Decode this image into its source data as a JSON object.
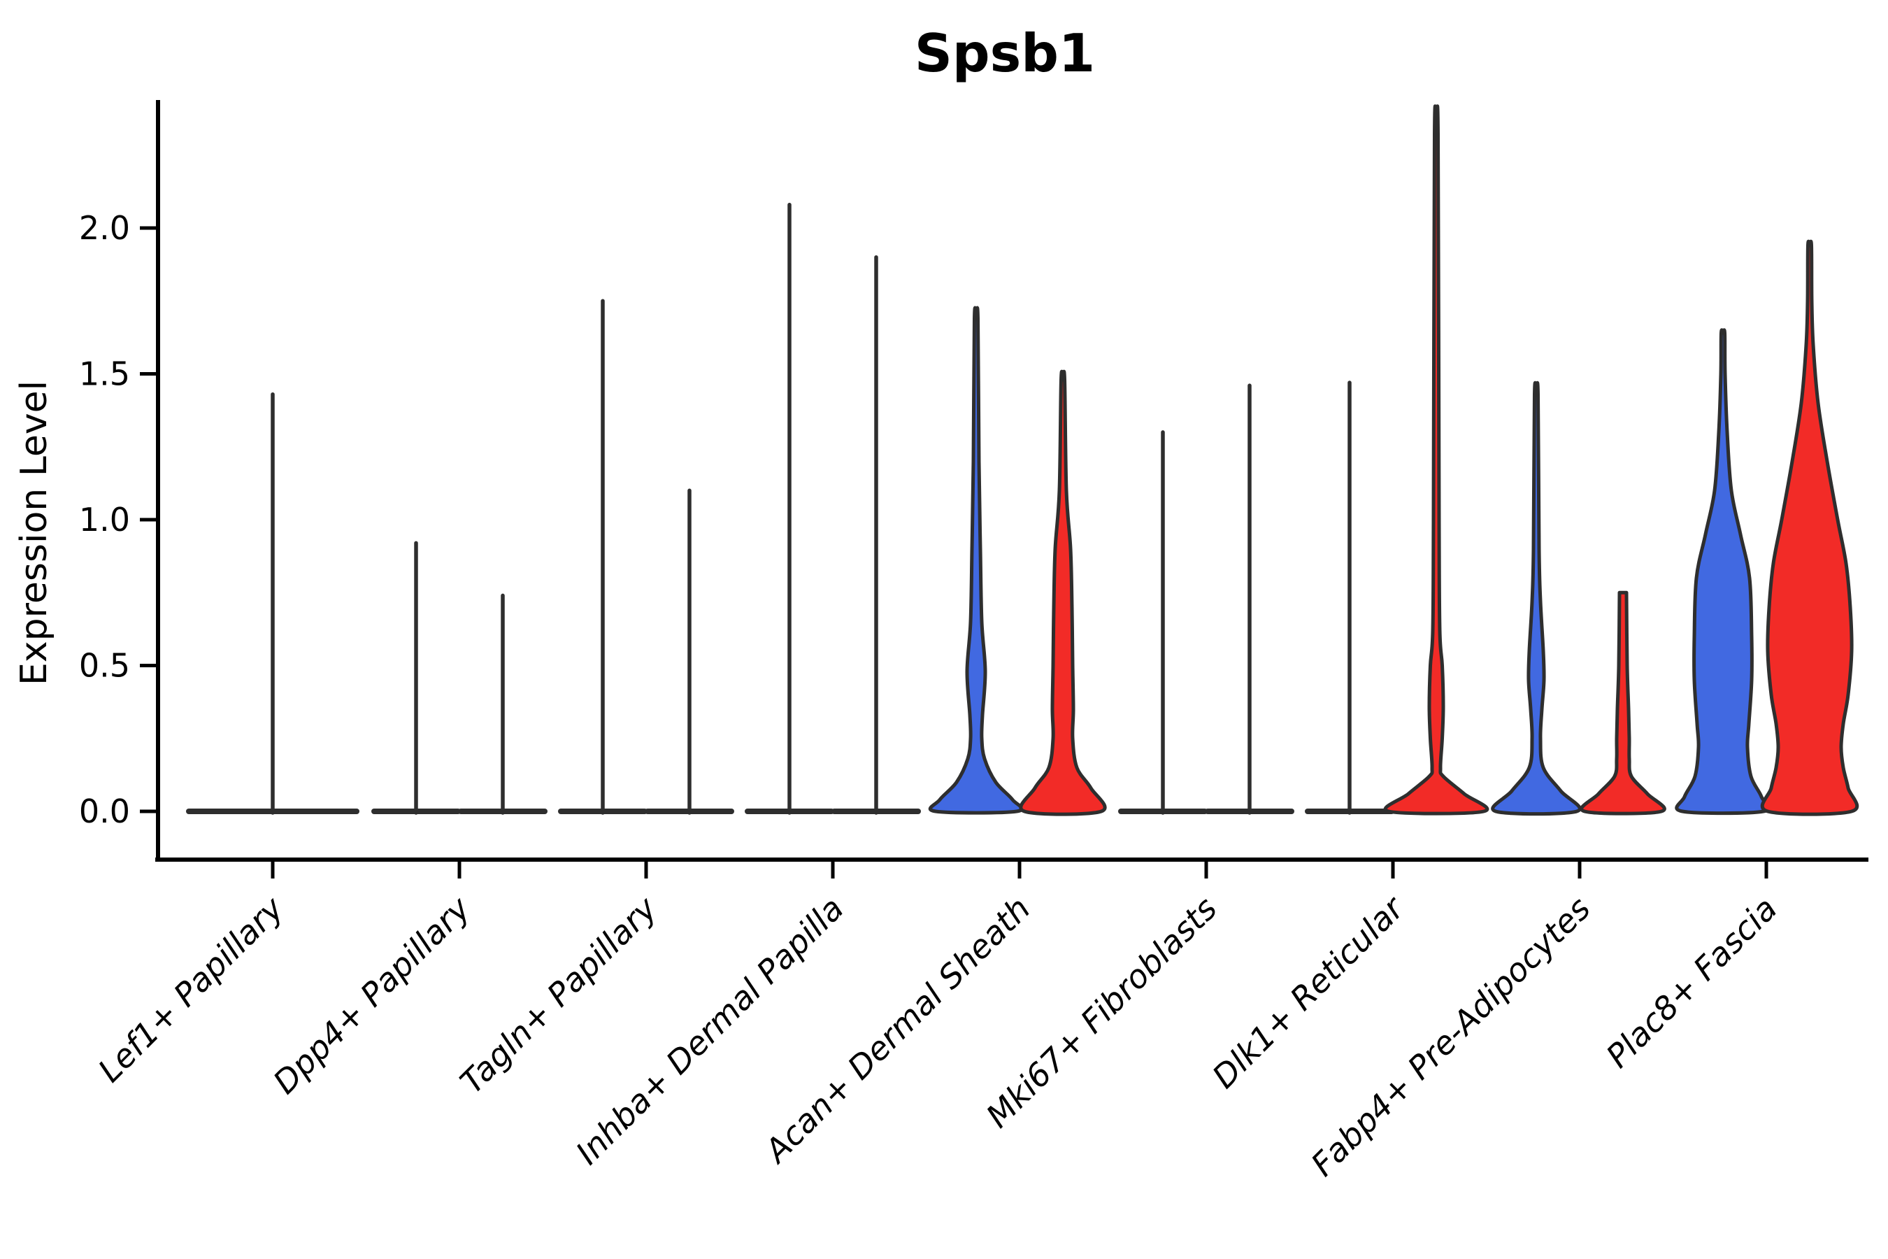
{
  "chart_data": {
    "type": "violin",
    "title": "Spsb1",
    "ylabel": "Expression Level",
    "xlabel": "",
    "grid": false,
    "legend": "none",
    "ylim": [
      -0.16,
      2.43
    ],
    "ytick_values": [
      0.0,
      0.5,
      1.0,
      1.5,
      2.0
    ],
    "ytick_labels": [
      "0.0",
      "0.5",
      "1.0",
      "1.5",
      "2.0"
    ],
    "categories": [
      "Lef1+ Papillary",
      "Dpp4+ Papillary",
      "Tagln+ Papillary",
      "Inhba+ Dermal Papilla",
      "Acan+ Dermal Sheath",
      "Mki67+ Fibroblasts",
      "Dlk1+ Reticular",
      "Fabp4+ Pre-Adipocytes",
      "Plac8+ Fascia"
    ],
    "colors": {
      "blue": "#4169E1",
      "red": "#F22B27",
      "outline": "#2E2E2E",
      "axis": "#000000"
    },
    "violins": [
      {
        "category": 0,
        "slot": "single",
        "fill": "none",
        "max": 1.43
      },
      {
        "category": 1,
        "slot": "left",
        "fill": "none",
        "max": 0.92
      },
      {
        "category": 1,
        "slot": "right",
        "fill": "none",
        "max": 0.74
      },
      {
        "category": 2,
        "slot": "left",
        "fill": "none",
        "max": 1.75
      },
      {
        "category": 2,
        "slot": "right",
        "fill": "none",
        "max": 1.1
      },
      {
        "category": 3,
        "slot": "left",
        "fill": "none",
        "max": 2.08
      },
      {
        "category": 3,
        "slot": "right",
        "fill": "none",
        "max": 1.9
      },
      {
        "category": 4,
        "slot": "left",
        "fill": "blue",
        "max": 1.69,
        "profile": [
          [
            1.69,
            2.5
          ],
          [
            1.2,
            4
          ],
          [
            0.9,
            6
          ],
          [
            0.65,
            8
          ],
          [
            0.48,
            13
          ],
          [
            0.33,
            9
          ],
          [
            0.25,
            8
          ],
          [
            0.18,
            12
          ],
          [
            0.1,
            28
          ],
          [
            0.04,
            52
          ],
          [
            0,
            58
          ]
        ]
      },
      {
        "category": 4,
        "slot": "right",
        "fill": "red",
        "max": 1.48,
        "profile": [
          [
            1.48,
            2.5
          ],
          [
            1.1,
            5
          ],
          [
            0.9,
            11
          ],
          [
            0.7,
            13
          ],
          [
            0.5,
            14
          ],
          [
            0.35,
            15
          ],
          [
            0.25,
            14
          ],
          [
            0.15,
            20
          ],
          [
            0.08,
            40
          ],
          [
            0,
            55
          ]
        ]
      },
      {
        "category": 5,
        "slot": "left",
        "fill": "none",
        "max": 1.3
      },
      {
        "category": 5,
        "slot": "right",
        "fill": "none",
        "max": 1.46
      },
      {
        "category": 6,
        "slot": "left",
        "fill": "none",
        "max": 1.47
      },
      {
        "category": 6,
        "slot": "right",
        "fill": "red",
        "max": 2.32,
        "profile": [
          [
            2.32,
            2.5
          ],
          [
            1.0,
            4
          ],
          [
            0.62,
            5
          ],
          [
            0.5,
            8.5
          ],
          [
            0.36,
            10
          ],
          [
            0.25,
            8.5
          ],
          [
            0.15,
            6
          ],
          [
            0.12,
            10
          ],
          [
            0.06,
            40
          ],
          [
            0,
            68
          ]
        ]
      },
      {
        "category": 7,
        "slot": "left",
        "fill": "blue",
        "max": 1.43,
        "profile": [
          [
            1.43,
            2.5
          ],
          [
            0.9,
            4
          ],
          [
            0.72,
            6
          ],
          [
            0.55,
            10
          ],
          [
            0.45,
            11
          ],
          [
            0.35,
            8
          ],
          [
            0.25,
            6
          ],
          [
            0.15,
            10
          ],
          [
            0.07,
            35
          ],
          [
            0,
            58
          ]
        ]
      },
      {
        "category": 7,
        "slot": "right",
        "fill": "red",
        "max": 0.75,
        "flat_top": true,
        "profile": [
          [
            0.75,
            5
          ],
          [
            0.5,
            6
          ],
          [
            0.35,
            8
          ],
          [
            0.25,
            9
          ],
          [
            0.18,
            9
          ],
          [
            0.12,
            12
          ],
          [
            0.06,
            35
          ],
          [
            0,
            55
          ]
        ]
      },
      {
        "category": 8,
        "slot": "left",
        "fill": "blue",
        "max": 1.64,
        "profile": [
          [
            1.64,
            2.5
          ],
          [
            1.5,
            3
          ],
          [
            1.3,
            6
          ],
          [
            1.1,
            12
          ],
          [
            0.95,
            25
          ],
          [
            0.8,
            38
          ],
          [
            0.6,
            41
          ],
          [
            0.45,
            41
          ],
          [
            0.3,
            37
          ],
          [
            0.22,
            35
          ],
          [
            0.12,
            40
          ],
          [
            0.05,
            55
          ],
          [
            0,
            58
          ]
        ]
      },
      {
        "category": 8,
        "slot": "right",
        "fill": "red",
        "max": 1.94,
        "profile": [
          [
            1.94,
            2.5
          ],
          [
            1.75,
            3
          ],
          [
            1.6,
            5
          ],
          [
            1.4,
            12
          ],
          [
            1.2,
            25
          ],
          [
            1.0,
            40
          ],
          [
            0.85,
            52
          ],
          [
            0.7,
            58
          ],
          [
            0.55,
            60
          ],
          [
            0.4,
            55
          ],
          [
            0.3,
            48
          ],
          [
            0.22,
            45
          ],
          [
            0.15,
            48
          ],
          [
            0.08,
            55
          ],
          [
            0,
            60
          ]
        ]
      }
    ]
  }
}
